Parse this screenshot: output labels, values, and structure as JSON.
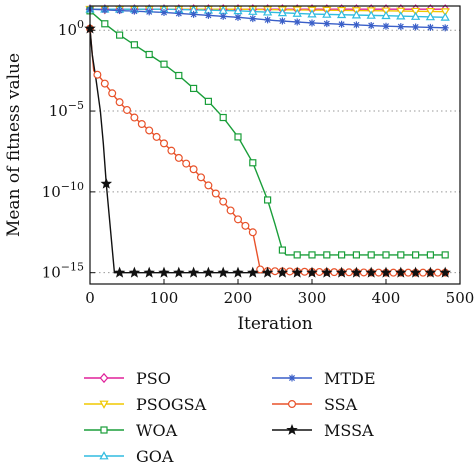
{
  "chart_data": {
    "type": "line",
    "title": "",
    "xlabel": "Iteration",
    "ylabel": "Mean of fitness value",
    "xlim": [
      0,
      500
    ],
    "x_ticks": [
      0,
      100,
      200,
      300,
      400,
      500
    ],
    "x_tick_labels": [
      "0",
      "100",
      "200",
      "300",
      "400",
      "500"
    ],
    "y_scale": "log",
    "ylim_exponent": [
      -15.7,
      1.5
    ],
    "y_ticks_exponent": [
      0,
      -5,
      -10,
      -15
    ],
    "y_tick_base": "10",
    "grid": "dotted horizontal at major y ticks",
    "legend_position": "below plot, two columns",
    "series": [
      {
        "name": "PSO",
        "color": "#e0209a",
        "marker": "diamond",
        "points": [
          [
            0,
            1.3
          ],
          [
            100,
            1.3
          ],
          [
            200,
            1.3
          ],
          [
            300,
            1.3
          ],
          [
            400,
            1.3
          ],
          [
            480,
            1.3
          ]
        ]
      },
      {
        "name": "PSOGSA",
        "color": "#f0c800",
        "marker": "triangle-down",
        "points": [
          [
            0,
            1.3
          ],
          [
            100,
            1.3
          ],
          [
            200,
            1.3
          ],
          [
            300,
            1.25
          ],
          [
            400,
            1.2
          ],
          [
            480,
            1.15
          ]
        ]
      },
      {
        "name": "WOA",
        "color": "#1a9e3a",
        "marker": "square",
        "points": [
          [
            0,
            1.2
          ],
          [
            10,
            0.8
          ],
          [
            20,
            0.4
          ],
          [
            40,
            -0.3
          ],
          [
            60,
            -0.9
          ],
          [
            80,
            -1.5
          ],
          [
            100,
            -2.1
          ],
          [
            120,
            -2.8
          ],
          [
            140,
            -3.6
          ],
          [
            160,
            -4.4
          ],
          [
            180,
            -5.4
          ],
          [
            200,
            -6.6
          ],
          [
            220,
            -8.2
          ],
          [
            240,
            -10.5
          ],
          [
            250,
            -12.0
          ],
          [
            260,
            -13.6
          ],
          [
            265,
            -13.9
          ],
          [
            300,
            -13.9
          ],
          [
            400,
            -13.9
          ],
          [
            480,
            -13.9
          ]
        ]
      },
      {
        "name": "GOA",
        "color": "#30bce0",
        "marker": "triangle-up",
        "points": [
          [
            0,
            1.3
          ],
          [
            100,
            1.3
          ],
          [
            200,
            1.2
          ],
          [
            300,
            1.0
          ],
          [
            400,
            0.9
          ],
          [
            480,
            0.8
          ]
        ]
      },
      {
        "name": "MTDE",
        "color": "#3a5fc8",
        "marker": "asterisk",
        "points": [
          [
            0,
            1.3
          ],
          [
            100,
            1.1
          ],
          [
            200,
            0.8
          ],
          [
            250,
            0.6
          ],
          [
            300,
            0.45
          ],
          [
            350,
            0.35
          ],
          [
            400,
            0.25
          ],
          [
            480,
            0.15
          ]
        ]
      },
      {
        "name": "SSA",
        "color": "#e8522a",
        "marker": "circle",
        "points": [
          [
            0,
            0.1
          ],
          [
            5,
            -2.5
          ],
          [
            15,
            -3.0
          ],
          [
            25,
            -3.6
          ],
          [
            35,
            -4.2
          ],
          [
            45,
            -4.7
          ],
          [
            60,
            -5.4
          ],
          [
            80,
            -6.2
          ],
          [
            100,
            -7.0
          ],
          [
            120,
            -7.9
          ],
          [
            140,
            -8.6
          ],
          [
            160,
            -9.6
          ],
          [
            180,
            -10.6
          ],
          [
            200,
            -11.7
          ],
          [
            220,
            -12.5
          ],
          [
            230,
            -14.8
          ],
          [
            240,
            -14.9
          ],
          [
            300,
            -14.95
          ],
          [
            400,
            -15.0
          ],
          [
            480,
            -15.0
          ]
        ]
      },
      {
        "name": "MSSA",
        "color": "#111111",
        "marker": "star",
        "points": [
          [
            0,
            0.1
          ],
          [
            3,
            -1.5
          ],
          [
            8,
            -3.0
          ],
          [
            14,
            -5.0
          ],
          [
            18,
            -7.0
          ],
          [
            22,
            -9.5
          ],
          [
            26,
            -11.5
          ],
          [
            30,
            -13.5
          ],
          [
            33,
            -15.0
          ],
          [
            40,
            -15.0
          ],
          [
            100,
            -15.0
          ],
          [
            200,
            -15.0
          ],
          [
            300,
            -15.0
          ],
          [
            400,
            -15.0
          ],
          [
            480,
            -15.0
          ]
        ]
      }
    ]
  }
}
